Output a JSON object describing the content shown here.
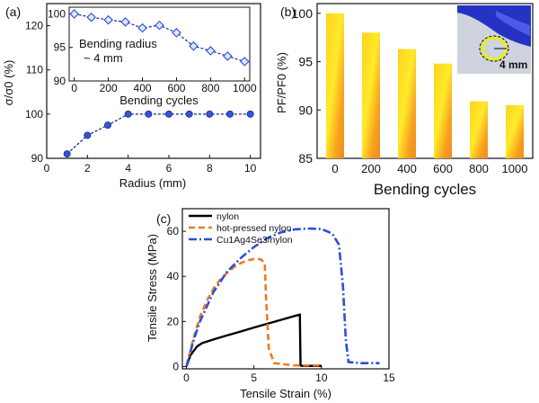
{
  "chart_data": [
    {
      "panel": "(a)",
      "type": "line",
      "xlabel": "Radius (mm)",
      "ylabel": "σ/σ0 (%)",
      "xlim": [
        0,
        10.5
      ],
      "ylim": [
        90,
        125
      ],
      "xticks": [
        "0",
        "2",
        "4",
        "6",
        "8",
        "10"
      ],
      "yticks": [
        "90",
        "100",
        "110",
        "120"
      ],
      "series": [
        {
          "x": [
            1,
            2,
            3,
            4,
            5,
            6,
            7,
            8,
            9,
            10
          ],
          "values": [
            91,
            95.2,
            97.5,
            100,
            100,
            100,
            100,
            100,
            100,
            100
          ]
        }
      ],
      "inset": {
        "type": "line",
        "xlabel": "Bending cycles",
        "annotation_line1": "Bending radius",
        "annotation_line2": "~ 4 mm",
        "xlim": [
          -30,
          1030
        ],
        "ylim": [
          90,
          101
        ],
        "xticks": [
          "0",
          "200",
          "400",
          "600",
          "800",
          "1000"
        ],
        "yticks": [
          "90",
          "95",
          "100"
        ],
        "series": [
          {
            "x": [
              0,
              100,
              200,
              300,
              400,
              500,
              600,
              700,
              800,
              900,
              1000
            ],
            "values": [
              100,
              99.5,
              99.1,
              98.8,
              97.9,
              98.3,
              97.2,
              95.2,
              94.5,
              93.7,
              92.9
            ]
          }
        ]
      }
    },
    {
      "panel": "(b)",
      "type": "bar",
      "xlabel": "Bending cycles",
      "ylabel": "PF/PF0 (%)",
      "categories": [
        "0",
        "200",
        "400",
        "600",
        "800",
        "1000"
      ],
      "values": [
        100,
        98,
        96.3,
        94.8,
        90.9,
        90.5
      ],
      "ylim": [
        85,
        101
      ],
      "yticks": [
        "85",
        "90",
        "95",
        "100"
      ],
      "photo_label": "4 mm",
      "colors": {
        "bar_top": "#f2b92a",
        "bar_mid": "#ffe31c",
        "bar_edge": "#f08a1e"
      }
    },
    {
      "panel": "(c)",
      "type": "line",
      "xlabel": "Tensile Strain (%)",
      "ylabel": "Tensile Stress (MPa)",
      "xlim": [
        -0.3,
        15
      ],
      "ylim": [
        -1,
        70
      ],
      "xticks": [
        "0",
        "5",
        "10",
        "15"
      ],
      "yticks": [
        "0",
        "20",
        "40",
        "60"
      ],
      "series": [
        {
          "name": "nylon",
          "color": "#000000",
          "x": [
            0,
            0.3,
            0.8,
            1.2,
            2,
            3,
            4,
            5,
            6,
            7,
            8,
            8.4,
            8.45,
            8.6,
            10
          ],
          "values": [
            0,
            5,
            9,
            10.5,
            12,
            13.8,
            15.5,
            17.3,
            19,
            20.7,
            22.4,
            23,
            0.5,
            0.3,
            0.3
          ]
        },
        {
          "name": "hot-pressed nylon",
          "color": "#f07a1e",
          "x": [
            0,
            0.5,
            1,
            1.5,
            2,
            2.5,
            3,
            3.5,
            4,
            4.5,
            5,
            5.5,
            5.8,
            5.9,
            6.1,
            6.5,
            8,
            10
          ],
          "values": [
            0,
            12,
            22,
            29,
            34.5,
            38.5,
            41.5,
            44,
            45.8,
            47,
            47.7,
            47.6,
            46,
            30,
            8,
            1.5,
            0.5,
            0.5
          ]
        },
        {
          "name": "Cu1Ag4Se3/nylon",
          "color": "#2a4fd8",
          "x": [
            0,
            0.5,
            1,
            2,
            3,
            4,
            5,
            6,
            7,
            8,
            9,
            10,
            10.8,
            11.3,
            11.6,
            11.8,
            12,
            13,
            14.3
          ],
          "values": [
            0,
            11,
            20,
            33,
            42,
            48,
            53,
            57,
            59.5,
            60.8,
            61.2,
            61,
            59,
            54,
            35,
            12,
            2,
            1.5,
            1.5
          ]
        }
      ]
    }
  ]
}
